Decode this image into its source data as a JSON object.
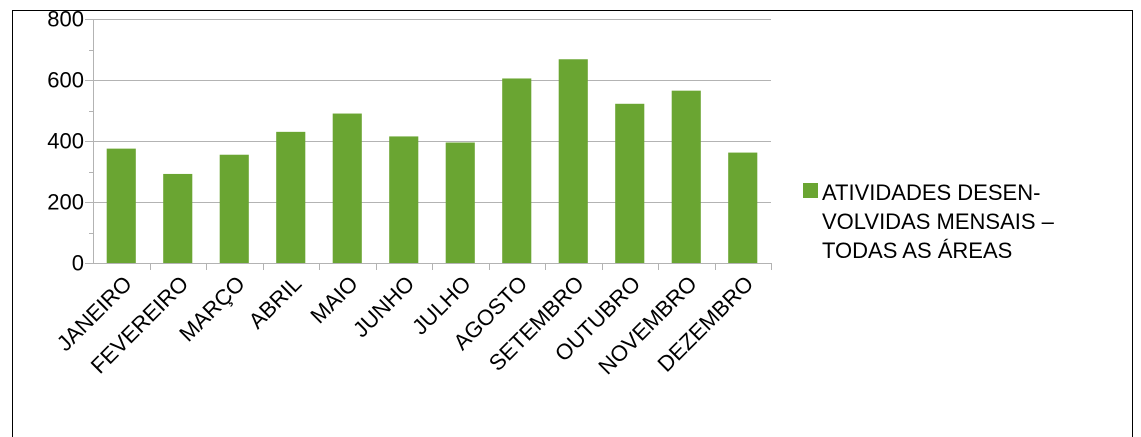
{
  "chart_data": {
    "type": "bar",
    "title": "",
    "xlabel": "",
    "ylabel": "",
    "categories": [
      "JANEIRO",
      "FEVEREIRO",
      "MARÇO",
      "ABRIL",
      "MAIO",
      "JUNHO",
      "JULHO",
      "AGOSTO",
      "SETEMBRO",
      "OUTUBRO",
      "NOVEMBRO",
      "DEZEMBRO"
    ],
    "series": [
      {
        "name": "ATIVIDADES DESEN-VOLVIDAS MENSAIS – TODAS AS ÁREAS",
        "values": [
          375,
          292,
          355,
          430,
          490,
          415,
          395,
          605,
          668,
          522,
          565,
          362
        ],
        "color": "#6aa532"
      }
    ],
    "ylim": [
      0,
      800
    ],
    "yticks": [
      "0",
      "200",
      "400",
      "600",
      "800"
    ],
    "grid": true,
    "legend_position": "right"
  }
}
